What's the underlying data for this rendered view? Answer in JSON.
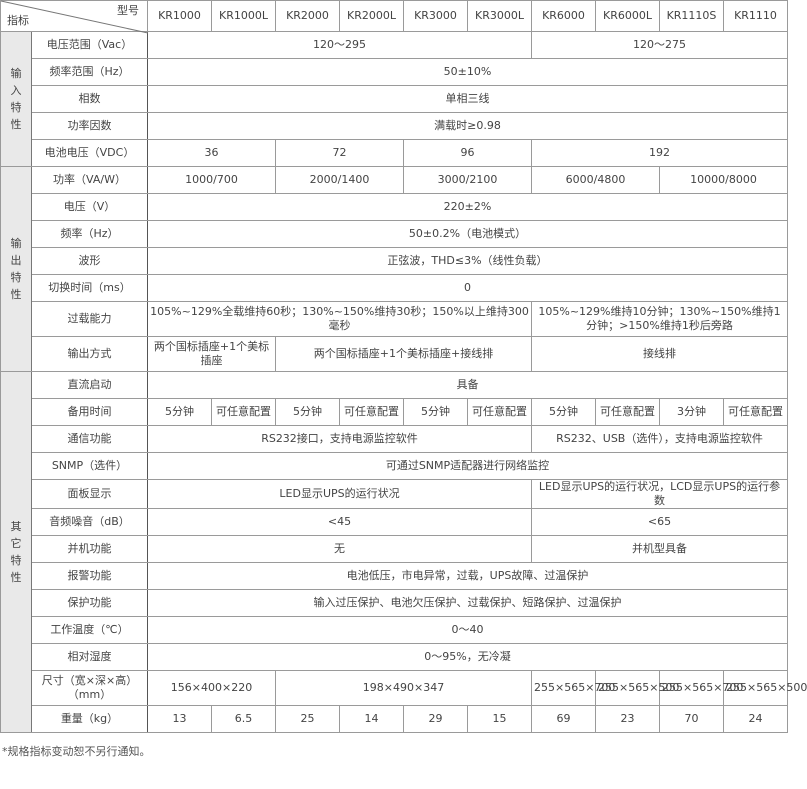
{
  "header": {
    "corner_model": "型号",
    "corner_index": "指标",
    "models": [
      "KR1000",
      "KR1000L",
      "KR2000",
      "KR2000L",
      "KR3000",
      "KR3000L",
      "KR6000",
      "KR6000L",
      "KR1110S",
      "KR1110"
    ]
  },
  "groups": [
    {
      "label": "输入特性",
      "rows": [
        {
          "label": "电压范围（Vac）",
          "cells": [
            {
              "text": "120～295",
              "span": 6
            },
            {
              "text": "120～275",
              "span": 4
            }
          ]
        },
        {
          "label": "频率范围（Hz）",
          "cells": [
            {
              "text": "50±10%",
              "span": 10
            }
          ]
        },
        {
          "label": "相数",
          "cells": [
            {
              "text": "单相三线",
              "span": 10
            }
          ]
        },
        {
          "label": "功率因数",
          "cells": [
            {
              "text": "满载时≥0.98",
              "span": 10
            }
          ]
        },
        {
          "label": "电池电压（VDC）",
          "cells": [
            {
              "text": "36",
              "span": 2
            },
            {
              "text": "72",
              "span": 2
            },
            {
              "text": "96",
              "span": 2
            },
            {
              "text": "192",
              "span": 4
            }
          ]
        }
      ]
    },
    {
      "label": "输出特性",
      "rows": [
        {
          "label": "功率（VA/W）",
          "cells": [
            {
              "text": "1000/700",
              "span": 2
            },
            {
              "text": "2000/1400",
              "span": 2
            },
            {
              "text": "3000/2100",
              "span": 2
            },
            {
              "text": "6000/4800",
              "span": 2
            },
            {
              "text": "10000/8000",
              "span": 2
            }
          ]
        },
        {
          "label": "电压（V）",
          "cells": [
            {
              "text": "220±2%",
              "span": 10
            }
          ]
        },
        {
          "label": "频率（Hz）",
          "cells": [
            {
              "text": "50±0.2%（电池模式）",
              "span": 10
            }
          ]
        },
        {
          "label": "波形",
          "cells": [
            {
              "text": "正弦波，THD≤3%（线性负载）",
              "span": 10
            }
          ]
        },
        {
          "label": "切换时间（ms）",
          "cells": [
            {
              "text": "0",
              "span": 10
            }
          ]
        },
        {
          "label": "过载能力",
          "tall": true,
          "cells": [
            {
              "text": "105%~129%全载维持60秒；130%~150%维持30秒；150%以上维持300毫秒",
              "span": 6
            },
            {
              "text": "105%~129%维持10分钟；130%~150%维持1分钟；>150%维持1秒后旁路",
              "span": 4
            }
          ]
        },
        {
          "label": "输出方式",
          "tall": true,
          "cells": [
            {
              "text": "两个国标插座+1个美标插座",
              "span": 2
            },
            {
              "text": "两个国标插座+1个美标插座+接线排",
              "span": 4
            },
            {
              "text": "接线排",
              "span": 4
            }
          ]
        }
      ]
    },
    {
      "label": "其它特性",
      "rows": [
        {
          "label": "直流启动",
          "cells": [
            {
              "text": "具备",
              "span": 10
            }
          ]
        },
        {
          "label": "备用时间",
          "cells": [
            {
              "text": "5分钟",
              "span": 1
            },
            {
              "text": "可任意配置",
              "span": 1
            },
            {
              "text": "5分钟",
              "span": 1
            },
            {
              "text": "可任意配置",
              "span": 1
            },
            {
              "text": "5分钟",
              "span": 1
            },
            {
              "text": "可任意配置",
              "span": 1
            },
            {
              "text": "5分钟",
              "span": 1
            },
            {
              "text": "可任意配置",
              "span": 1
            },
            {
              "text": "3分钟",
              "span": 1
            },
            {
              "text": "可任意配置",
              "span": 1
            }
          ]
        },
        {
          "label": "通信功能",
          "cells": [
            {
              "text": "RS232接口，支持电源监控软件",
              "span": 6
            },
            {
              "text": "RS232、USB（选件），支持电源监控软件",
              "span": 4
            }
          ]
        },
        {
          "label": "SNMP（选件）",
          "cells": [
            {
              "text": "可通过SNMP适配器进行网络监控",
              "span": 10
            }
          ]
        },
        {
          "label": "面板显示",
          "cells": [
            {
              "text": "LED显示UPS的运行状况",
              "span": 6
            },
            {
              "text": "LED显示UPS的运行状况，LCD显示UPS的运行参数",
              "span": 4
            }
          ]
        },
        {
          "label": "音频噪音（dB）",
          "cells": [
            {
              "text": "<45",
              "span": 6
            },
            {
              "text": "<65",
              "span": 4
            }
          ]
        },
        {
          "label": "并机功能",
          "cells": [
            {
              "text": "无",
              "span": 6
            },
            {
              "text": "并机型具备",
              "span": 4
            }
          ]
        },
        {
          "label": "报警功能",
          "cells": [
            {
              "text": "电池低压，市电异常，过载，UPS故障、过温保护",
              "span": 10
            }
          ]
        },
        {
          "label": "保护功能",
          "cells": [
            {
              "text": "输入过压保护、电池欠压保护、过载保护、短路保护、过温保护",
              "span": 10
            }
          ]
        },
        {
          "label": "工作温度（℃）",
          "cells": [
            {
              "text": "0～40",
              "span": 10
            }
          ]
        },
        {
          "label": "相对湿度",
          "cells": [
            {
              "text": "0～95%，无冷凝",
              "span": 10
            }
          ]
        },
        {
          "label": "尺寸（宽×深×高）（mm）",
          "tall": true,
          "cells": [
            {
              "text": "156×400×220",
              "span": 2
            },
            {
              "text": "198×490×347",
              "span": 4
            },
            {
              "text": "255×565×700",
              "span": 1
            },
            {
              "text": "255×565×500",
              "span": 1
            },
            {
              "text": "255×565×700",
              "span": 1
            },
            {
              "text": "255×565×500",
              "span": 1
            }
          ]
        },
        {
          "label": "重量（kg）",
          "cells": [
            {
              "text": "13",
              "span": 1
            },
            {
              "text": "6.5",
              "span": 1
            },
            {
              "text": "25",
              "span": 1
            },
            {
              "text": "14",
              "span": 1
            },
            {
              "text": "29",
              "span": 1
            },
            {
              "text": "15",
              "span": 1
            },
            {
              "text": "69",
              "span": 1
            },
            {
              "text": "23",
              "span": 1
            },
            {
              "text": "70",
              "span": 1
            },
            {
              "text": "24",
              "span": 1
            }
          ]
        }
      ]
    }
  ],
  "footnote": "*规格指标变动恕不另行通知。"
}
